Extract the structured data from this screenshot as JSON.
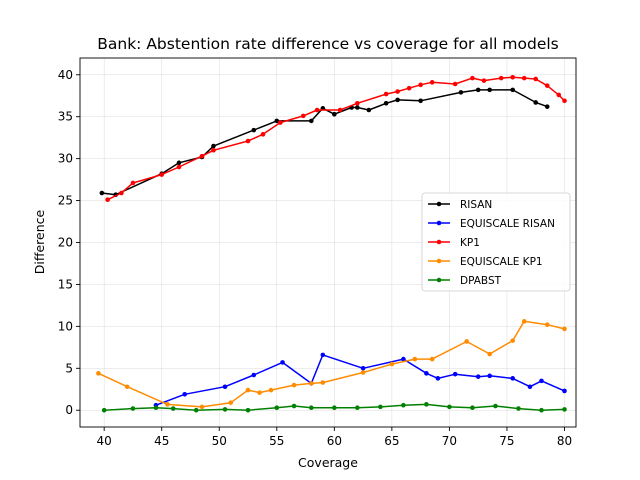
{
  "chart_data": {
    "type": "line",
    "title": "Bank: Abstention rate difference vs coverage for all models",
    "xlabel": "Coverage",
    "ylabel": "Difference",
    "xlim": [
      37.9,
      81.0
    ],
    "ylim": [
      -2.0,
      42.0
    ],
    "xticks": [
      40,
      45,
      50,
      55,
      60,
      65,
      70,
      75,
      80
    ],
    "yticks": [
      0,
      5,
      10,
      15,
      20,
      25,
      30,
      35,
      40
    ],
    "grid": true,
    "legend_position": "center-right",
    "series": [
      {
        "name": "RISAN",
        "color": "#000000",
        "x": [
          39.8,
          41.0,
          45.0,
          46.5,
          48.5,
          49.5,
          53.0,
          55.0,
          58.0,
          59.0,
          60.0,
          61.5,
          62.0,
          63.0,
          64.5,
          65.5,
          67.5,
          71.0,
          72.5,
          73.5,
          75.5,
          77.5,
          78.5
        ],
        "y": [
          25.9,
          25.7,
          28.2,
          29.5,
          30.2,
          31.5,
          33.4,
          34.5,
          34.5,
          36.0,
          35.3,
          36.1,
          36.1,
          35.8,
          36.6,
          37.0,
          36.9,
          37.9,
          38.2,
          38.2,
          38.2,
          36.7,
          36.2
        ]
      },
      {
        "name": "EQUISCALE RISAN",
        "color": "#0000ff",
        "x": [
          44.5,
          47.0,
          50.5,
          53.0,
          55.5,
          58.0,
          59.0,
          62.5,
          66.0,
          68.0,
          69.0,
          70.5,
          72.5,
          73.5,
          75.5,
          77.0,
          78.0,
          80.0
        ],
        "y": [
          0.6,
          1.9,
          2.8,
          4.2,
          5.7,
          3.2,
          6.6,
          5.0,
          6.1,
          4.4,
          3.8,
          4.3,
          4.0,
          4.1,
          3.8,
          2.8,
          3.5,
          2.3
        ]
      },
      {
        "name": "KP1",
        "color": "#ff0000",
        "x": [
          40.3,
          41.5,
          42.5,
          45.0,
          46.5,
          48.5,
          49.5,
          52.5,
          53.8,
          55.3,
          57.3,
          58.5,
          60.5,
          62.0,
          64.5,
          65.5,
          66.5,
          67.5,
          68.5,
          70.5,
          72.0,
          73.0,
          74.5,
          75.5,
          76.5,
          77.5,
          78.5,
          79.5,
          80.0
        ],
        "y": [
          25.1,
          25.9,
          27.1,
          28.1,
          29.0,
          30.3,
          31.0,
          32.1,
          32.9,
          34.3,
          35.1,
          35.8,
          35.8,
          36.6,
          37.7,
          38.0,
          38.4,
          38.8,
          39.1,
          38.9,
          39.6,
          39.3,
          39.6,
          39.7,
          39.6,
          39.5,
          38.7,
          37.6,
          36.9
        ]
      },
      {
        "name": "EQUISCALE KP1",
        "color": "#ff8c00",
        "x": [
          39.5,
          42.0,
          45.5,
          48.5,
          51.0,
          52.5,
          53.5,
          54.5,
          56.5,
          58.0,
          59.0,
          62.5,
          65.0,
          67.0,
          68.5,
          71.5,
          73.5,
          75.5,
          76.5,
          78.5,
          80.0
        ],
        "y": [
          4.4,
          2.8,
          0.7,
          0.4,
          0.9,
          2.4,
          2.1,
          2.4,
          3.0,
          3.2,
          3.3,
          4.5,
          5.5,
          6.1,
          6.1,
          8.2,
          6.7,
          8.3,
          10.6,
          10.2,
          9.7
        ]
      },
      {
        "name": "DPABST",
        "color": "#008000",
        "x": [
          40.0,
          42.5,
          44.5,
          46.0,
          48.0,
          50.5,
          52.5,
          55.0,
          56.5,
          58.0,
          60.0,
          62.0,
          64.0,
          66.0,
          68.0,
          70.0,
          72.0,
          74.0,
          76.0,
          78.0,
          80.0
        ],
        "y": [
          0.0,
          0.2,
          0.3,
          0.2,
          0.0,
          0.1,
          0.0,
          0.3,
          0.5,
          0.3,
          0.3,
          0.3,
          0.4,
          0.6,
          0.7,
          0.4,
          0.3,
          0.5,
          0.2,
          0.0,
          0.1
        ]
      }
    ]
  }
}
